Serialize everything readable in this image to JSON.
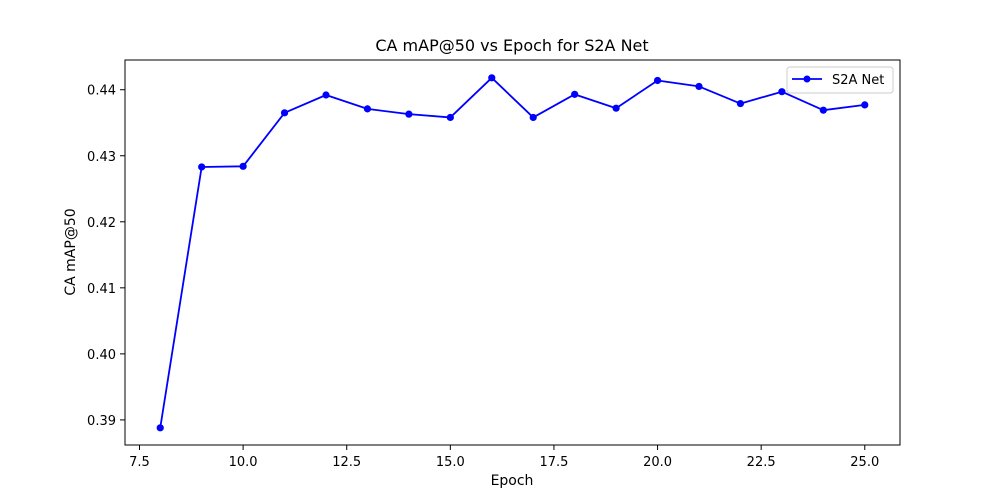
{
  "chart_data": {
    "type": "line",
    "title": "CA mAP@50 vs Epoch for S2A Net",
    "xlabel": "Epoch",
    "ylabel": "CA mAP@50",
    "xlim": [
      7.15,
      25.85
    ],
    "ylim": [
      0.3862,
      0.4445
    ],
    "xticks": [
      7.5,
      10.0,
      12.5,
      15.0,
      17.5,
      20.0,
      22.5,
      25.0
    ],
    "xtick_labels": [
      "7.5",
      "10.0",
      "12.5",
      "15.0",
      "17.5",
      "20.0",
      "22.5",
      "25.0"
    ],
    "yticks": [
      0.39,
      0.4,
      0.41,
      0.42,
      0.43,
      0.44
    ],
    "ytick_labels": [
      "0.39",
      "0.40",
      "0.41",
      "0.42",
      "0.43",
      "0.44"
    ],
    "grid": false,
    "legend_position": "top-right",
    "series": [
      {
        "name": "S2A Net",
        "color": "#0000ff",
        "marker": "circle",
        "x": [
          8,
          9,
          10,
          11,
          12,
          13,
          14,
          15,
          16,
          17,
          18,
          19,
          20,
          21,
          22,
          23,
          24,
          25
        ],
        "y": [
          0.3888,
          0.4283,
          0.4284,
          0.4365,
          0.4392,
          0.4371,
          0.4363,
          0.4358,
          0.4418,
          0.4358,
          0.4393,
          0.4372,
          0.4414,
          0.4405,
          0.4379,
          0.4397,
          0.4369,
          0.4377
        ]
      }
    ]
  }
}
